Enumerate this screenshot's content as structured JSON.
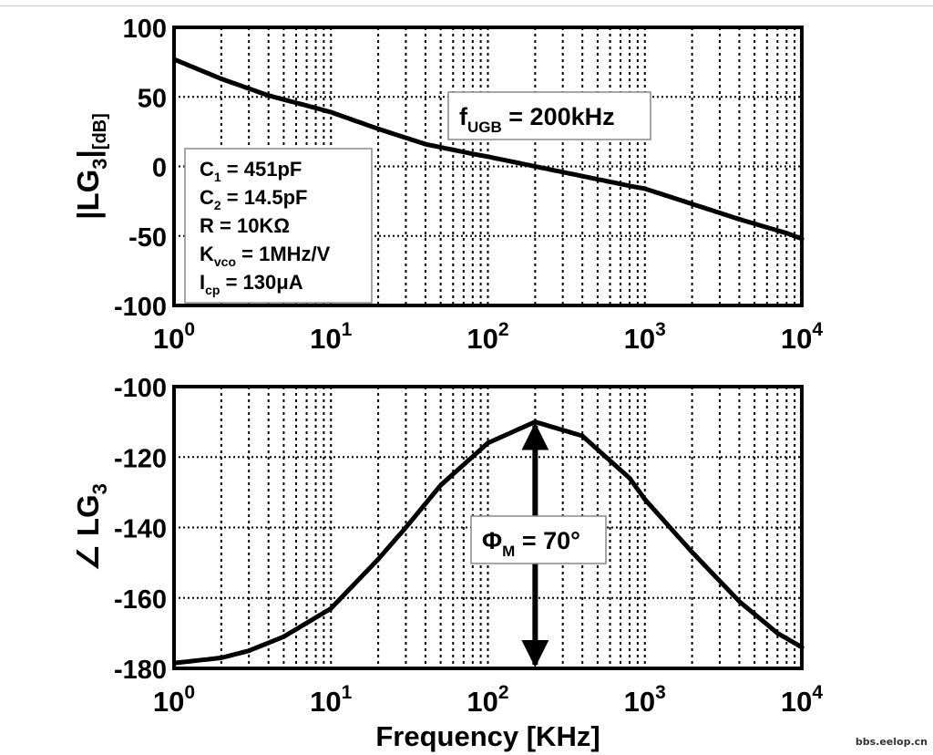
{
  "chart_data": [
    {
      "type": "line",
      "title": "",
      "xlabel": "",
      "ylabel": "|LG3|[dB]",
      "ylabel_parts": {
        "main": "|LG",
        "sub": "3",
        "tail": "|",
        "unit": "[dB]"
      },
      "xscale": "log",
      "xlim": [
        1,
        10000
      ],
      "ylim": [
        -100,
        100
      ],
      "yticks": [
        "-100",
        "-50",
        "0",
        "50",
        "100"
      ],
      "xtick_labels": [
        {
          "base": "10",
          "exp": "0"
        },
        {
          "base": "10",
          "exp": "1"
        },
        {
          "base": "10",
          "exp": "2"
        },
        {
          "base": "10",
          "exp": "3"
        },
        {
          "base": "10",
          "exp": "4"
        }
      ],
      "grid": true,
      "series": [
        {
          "x": [
            1,
            2,
            4,
            8,
            10,
            20,
            40,
            80,
            100,
            200,
            400,
            800,
            1000,
            2000,
            4000,
            8000,
            10000
          ],
          "y": [
            77,
            63,
            51,
            42,
            39,
            27,
            16,
            9,
            7,
            0,
            -7,
            -14,
            -16,
            -27,
            -38,
            -48,
            -52
          ]
        }
      ],
      "annotation": {
        "main": "f",
        "sub": "UGB",
        "tail": " = 200kHz"
      },
      "params_box": [
        {
          "main": "C",
          "sub": "1",
          "tail": " = 451pF"
        },
        {
          "main": "C",
          "sub": "2",
          "tail": " = 14.5pF"
        },
        {
          "main": "R = 10K",
          "sub": "",
          "tail": "Ω"
        },
        {
          "main": "K",
          "sub": "vco",
          "tail": " = 1MHz/V"
        },
        {
          "main": "I",
          "sub": "cp",
          "tail": " = 130μA"
        }
      ]
    },
    {
      "type": "line",
      "title": "",
      "xlabel": "Frequency [KHz]",
      "ylabel": "∠LG3",
      "ylabel_parts": {
        "main": "∠ LG",
        "sub": "3"
      },
      "xscale": "log",
      "xlim": [
        1,
        10000
      ],
      "ylim": [
        -180,
        -100
      ],
      "yticks": [
        "-180",
        "-160",
        "-140",
        "-120",
        "-100"
      ],
      "xtick_labels": [
        {
          "base": "10",
          "exp": "0"
        },
        {
          "base": "10",
          "exp": "1"
        },
        {
          "base": "10",
          "exp": "2"
        },
        {
          "base": "10",
          "exp": "3"
        },
        {
          "base": "10",
          "exp": "4"
        }
      ],
      "grid": true,
      "series": [
        {
          "x": [
            1,
            2,
            3,
            5,
            10,
            20,
            30,
            50,
            100,
            200,
            400,
            800,
            1000,
            2000,
            4000,
            7000,
            10000
          ],
          "y": [
            -178.5,
            -177,
            -175,
            -171,
            -163,
            -149,
            -140,
            -128,
            -116,
            -110,
            -114,
            -126,
            -132,
            -147,
            -161,
            -170,
            -174
          ]
        }
      ],
      "annotation": {
        "main": "Φ",
        "sub": "M",
        "tail": " = 70°"
      },
      "phase_margin_x": 200
    }
  ],
  "watermark": "bbs.eelop.cn"
}
